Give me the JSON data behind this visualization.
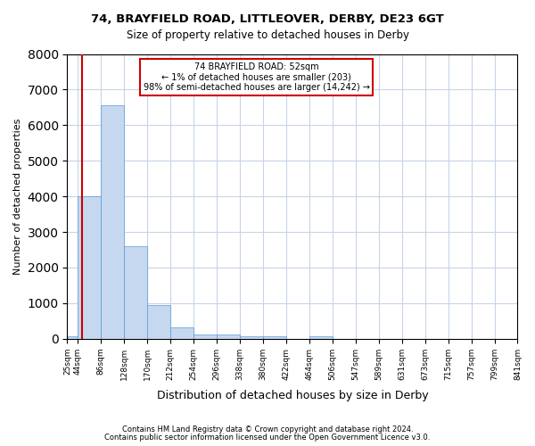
{
  "title1": "74, BRAYFIELD ROAD, LITTLEOVER, DERBY, DE23 6GT",
  "title2": "Size of property relative to detached houses in Derby",
  "xlabel": "Distribution of detached houses by size in Derby",
  "ylabel": "Number of detached properties",
  "footnote1": "Contains HM Land Registry data © Crown copyright and database right 2024.",
  "footnote2": "Contains public sector information licensed under the Open Government Licence v3.0.",
  "annotation_title": "74 BRAYFIELD ROAD: 52sqm",
  "annotation_line1": "← 1% of detached houses are smaller (203)",
  "annotation_line2": "98% of semi-detached houses are larger (14,242) →",
  "property_size_sqm": 52,
  "bar_color": "#c5d8f0",
  "bar_edge_color": "#5b9bd5",
  "marker_line_color": "#cc0000",
  "annotation_box_color": "#cc0000",
  "background_color": "#ffffff",
  "grid_color": "#c8d4e8",
  "bin_edges": [
    25,
    44,
    86,
    128,
    170,
    212,
    254,
    296,
    338,
    380,
    422,
    464,
    506,
    547,
    589,
    631,
    673,
    715,
    757,
    799,
    841
  ],
  "bin_labels": [
    "25sqm",
    "44sqm",
    "86sqm",
    "128sqm",
    "170sqm",
    "212sqm",
    "254sqm",
    "296sqm",
    "338sqm",
    "380sqm",
    "422sqm",
    "464sqm",
    "506sqm",
    "547sqm",
    "589sqm",
    "631sqm",
    "673sqm",
    "715sqm",
    "757sqm",
    "799sqm",
    "841sqm"
  ],
  "values": [
    80,
    4000,
    6550,
    2600,
    950,
    320,
    130,
    110,
    65,
    60,
    0,
    60,
    0,
    0,
    0,
    0,
    0,
    0,
    0,
    0
  ],
  "ylim": [
    0,
    8000
  ],
  "yticks": [
    0,
    1000,
    2000,
    3000,
    4000,
    5000,
    6000,
    7000,
    8000
  ]
}
